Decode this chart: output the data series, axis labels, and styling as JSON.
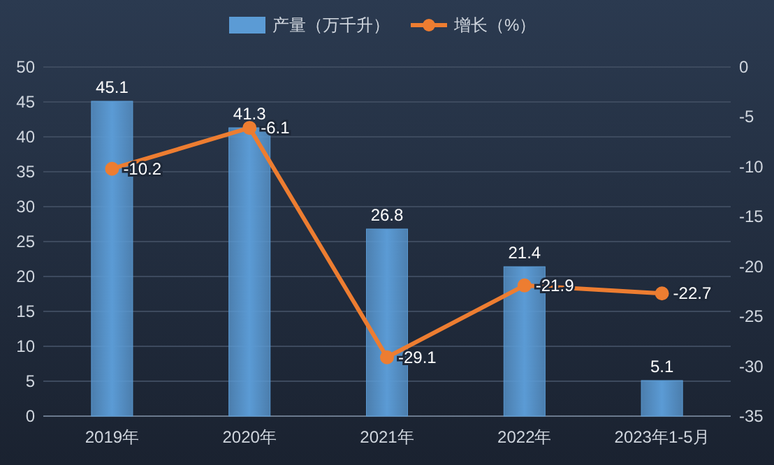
{
  "chart_data": {
    "type": "bar",
    "categories": [
      "2019年",
      "2020年",
      "2021年",
      "2022年",
      "2023年1-5月"
    ],
    "series": [
      {
        "name": "产量（万千升）",
        "color": "#5b9bd5",
        "values": [
          45.1,
          41.3,
          26.8,
          21.4,
          5.1
        ]
      },
      {
        "name": "增长（%）",
        "type": "line",
        "axis": "y2",
        "color": "#ed7d31",
        "marker": "circle",
        "values": [
          -10.2,
          -6.1,
          -29.1,
          -21.9,
          -22.7
        ]
      }
    ],
    "ylim": [
      0,
      50
    ],
    "yticks": [
      0,
      5,
      10,
      15,
      20,
      25,
      30,
      35,
      40,
      45,
      50
    ],
    "y2lim": [
      -35,
      0
    ],
    "y2ticks": [
      -35,
      -30,
      -25,
      -20,
      -15,
      -10,
      -5,
      0
    ],
    "grid": "y",
    "legend": "top",
    "data_labels": true
  }
}
